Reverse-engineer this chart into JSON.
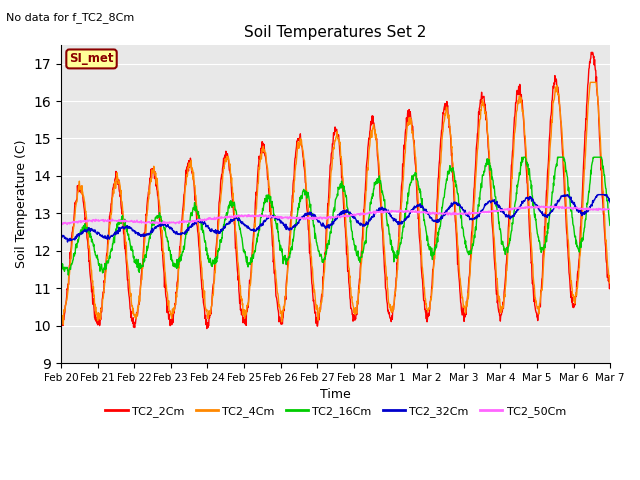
{
  "title": "Soil Temperatures Set 2",
  "subtitle": "No data for f_TC2_8Cm",
  "xlabel": "Time",
  "ylabel": "Soil Temperature (C)",
  "ylim": [
    9.0,
    17.5
  ],
  "yticks": [
    9.0,
    10.0,
    11.0,
    12.0,
    13.0,
    14.0,
    15.0,
    16.0,
    17.0
  ],
  "bg_color": "#e8e8e8",
  "fig_color": "#ffffff",
  "legend_label": "SI_met",
  "legend_bg": "#ffff99",
  "legend_border": "#8b0000",
  "series_colors": {
    "TC2_2Cm": "#ff0000",
    "TC2_4Cm": "#ff8800",
    "TC2_16Cm": "#00cc00",
    "TC2_32Cm": "#0000cc",
    "TC2_50Cm": "#ff66ff"
  },
  "x_tick_labels": [
    "Feb 20",
    "Feb 21",
    "Feb 22",
    "Feb 23",
    "Feb 24",
    "Feb 25",
    "Feb 26",
    "Feb 27",
    "Feb 28",
    "Mar 1",
    "Mar 2",
    "Mar 3",
    "Mar 4",
    "Mar 5",
    "Mar 6",
    "Mar 7"
  ]
}
